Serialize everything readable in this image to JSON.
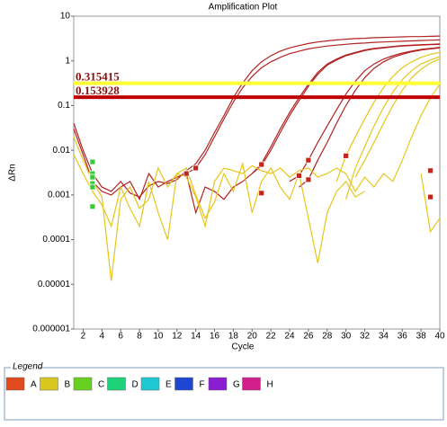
{
  "chart_data": {
    "type": "line",
    "title": "Amplification Plot",
    "x_label": "Cycle",
    "y_label": "ΔRn",
    "y_log": true,
    "grid": false,
    "xlim": [
      1,
      40
    ],
    "ylim": [
      1e-06,
      10
    ],
    "xticks": [
      2,
      4,
      6,
      8,
      10,
      12,
      14,
      16,
      18,
      20,
      22,
      24,
      26,
      28,
      30,
      32,
      34,
      36,
      38,
      40
    ],
    "yticks": [
      10,
      1,
      0.1,
      0.01,
      0.001,
      0.0001,
      1e-05,
      1e-06
    ],
    "x": [
      1,
      2,
      3,
      4,
      5,
      6,
      7,
      8,
      9,
      10,
      11,
      12,
      13,
      14,
      15,
      16,
      17,
      18,
      19,
      20,
      21,
      22,
      23,
      24,
      25,
      26,
      27,
      28,
      29,
      30,
      31,
      32,
      33,
      34,
      35,
      36,
      37,
      38,
      39,
      40
    ],
    "thresholds": [
      {
        "value": 0.315415,
        "color": "#ffff33"
      },
      {
        "value": 0.153928,
        "color": "#c00000"
      }
    ],
    "series": [
      {
        "color": "#b22222",
        "values": [
          0.03,
          0.008,
          0.002,
          0.0012,
          0.001,
          0.0015,
          0.002,
          0.0008,
          0.003,
          0.0015,
          0.002,
          0.0025,
          0.003,
          0.004,
          0.008,
          0.02,
          0.05,
          0.12,
          0.25,
          0.45,
          0.7,
          0.95,
          1.2,
          1.45,
          1.65,
          1.85,
          2.0,
          2.15,
          2.25,
          2.35,
          2.45,
          2.5,
          2.6,
          2.65,
          2.7,
          2.75,
          2.8,
          2.85,
          2.9,
          2.95
        ]
      },
      {
        "color": "#b22222",
        "values": [
          0.04,
          0.01,
          0.003,
          0.0015,
          0.0012,
          0.002,
          0.0011,
          0.0009,
          0.0016,
          0.002,
          0.0018,
          0.0022,
          0.0035,
          0.005,
          0.01,
          0.025,
          0.06,
          0.15,
          0.32,
          0.6,
          0.95,
          1.3,
          1.65,
          1.95,
          2.2,
          2.45,
          2.65,
          2.8,
          2.95,
          3.05,
          3.15,
          3.2,
          3.3,
          3.35,
          3.4,
          3.45,
          3.5,
          3.5,
          3.55,
          3.6
        ]
      },
      {
        "color": "#b22222",
        "values": [
          null,
          null,
          null,
          null,
          null,
          null,
          null,
          null,
          null,
          null,
          null,
          null,
          0.003,
          0.0004,
          0.0015,
          0.0012,
          0.0008,
          0.0015,
          0.002,
          0.003,
          0.005,
          0.012,
          0.03,
          0.07,
          0.15,
          0.3,
          0.55,
          0.85,
          1.1,
          1.35,
          1.55,
          1.75,
          1.9,
          2.0,
          2.1,
          2.2,
          2.25,
          2.3,
          2.35,
          2.4
        ]
      },
      {
        "color": "#b22222",
        "values": [
          null,
          null,
          null,
          null,
          null,
          null,
          null,
          null,
          null,
          null,
          null,
          null,
          null,
          null,
          null,
          null,
          null,
          null,
          null,
          0.003,
          0.0045,
          0.01,
          0.025,
          0.06,
          0.13,
          0.27,
          0.5,
          0.8,
          1.05,
          1.3,
          1.5,
          1.7,
          1.85,
          1.95,
          2.05,
          2.15,
          2.2,
          2.25,
          2.3,
          2.35
        ]
      },
      {
        "color": "#b22222",
        "values": [
          null,
          null,
          null,
          null,
          null,
          null,
          null,
          null,
          null,
          null,
          null,
          null,
          null,
          null,
          null,
          null,
          null,
          null,
          null,
          null,
          null,
          null,
          null,
          0.002,
          0.0027,
          0.006,
          0.015,
          0.035,
          0.08,
          0.18,
          0.35,
          0.6,
          0.85,
          1.1,
          1.3,
          1.5,
          1.65,
          1.8,
          1.9,
          2.0
        ]
      },
      {
        "color": "#b22222",
        "values": [
          null,
          null,
          null,
          null,
          null,
          null,
          null,
          null,
          null,
          null,
          null,
          null,
          null,
          null,
          null,
          null,
          null,
          null,
          null,
          null,
          null,
          null,
          null,
          null,
          0.0015,
          0.0022,
          0.006,
          0.015,
          0.04,
          0.1,
          0.22,
          0.42,
          0.68,
          0.95,
          1.2,
          1.4,
          1.6,
          1.75,
          1.85,
          1.95
        ]
      },
      {
        "color": "#e6c619",
        "values": [
          null,
          null,
          null,
          null,
          null,
          null,
          null,
          null,
          null,
          null,
          null,
          null,
          null,
          null,
          null,
          null,
          null,
          null,
          null,
          null,
          null,
          null,
          null,
          null,
          null,
          null,
          null,
          null,
          0.002,
          0.0075,
          0.02,
          0.05,
          0.12,
          0.25,
          0.45,
          0.7,
          0.95,
          1.2,
          1.4,
          1.55
        ]
      },
      {
        "color": "#e6c619",
        "values": [
          null,
          null,
          null,
          null,
          null,
          null,
          null,
          null,
          null,
          null,
          null,
          null,
          null,
          null,
          null,
          null,
          null,
          null,
          null,
          null,
          null,
          null,
          null,
          null,
          null,
          null,
          null,
          null,
          null,
          0.0008,
          0.004,
          0.012,
          0.035,
          0.09,
          0.2,
          0.38,
          0.6,
          0.85,
          1.05,
          1.25
        ]
      },
      {
        "color": "#e6c619",
        "values": [
          0.008,
          0.003,
          0.0012,
          0.0006,
          0.0002,
          0.0015,
          0.0005,
          0.0002,
          0.002,
          0.0004,
          0.0001,
          0.003,
          0.004,
          0.001,
          0.0003,
          0.0007,
          0.003,
          0.0012,
          0.005,
          0.0004,
          0.002,
          0.004,
          0.0015,
          0.0008,
          0.003,
          0.0003,
          3e-05,
          0.0004,
          0.0012,
          0.002,
          0.0009,
          0.0012,
          null,
          null,
          0.002,
          0.006,
          0.02,
          0.06,
          0.15,
          0.3
        ]
      },
      {
        "color": "#e6c619",
        "values": [
          0.02,
          0.006,
          0.002,
          0.0009,
          1.2e-05,
          0.0008,
          0.0015,
          0.0005,
          0.0008,
          0.004,
          0.0015,
          0.003,
          0.0025,
          0.0009,
          0.0002,
          0.002,
          0.004,
          0.0035,
          0.003,
          0.0045,
          0.0035,
          0.003,
          0.004,
          0.0025,
          0.0035,
          0.004,
          0.0025,
          0.003,
          0.004,
          0.003,
          0.0012,
          0.0025,
          0.0015,
          0.003,
          0.002,
          null,
          null,
          0.003,
          0.00015,
          0.0003
        ]
      },
      {
        "color": "#e6c619",
        "values": [
          null,
          null,
          null,
          null,
          null,
          null,
          null,
          null,
          null,
          null,
          null,
          null,
          null,
          null,
          null,
          null,
          null,
          null,
          null,
          null,
          null,
          null,
          null,
          null,
          null,
          null,
          null,
          null,
          null,
          null,
          0.0025,
          0.006,
          0.015,
          0.04,
          0.1,
          0.22,
          0.42,
          0.65,
          0.9,
          1.1
        ]
      }
    ],
    "markers": [
      {
        "x": 13,
        "y": 0.003,
        "color": "#c0281e"
      },
      {
        "x": 14,
        "y": 0.004,
        "color": "#c0281e"
      },
      {
        "x": 21,
        "y": 0.0048,
        "color": "#c0281e"
      },
      {
        "x": 21,
        "y": 0.0011,
        "color": "#c0281e"
      },
      {
        "x": 25,
        "y": 0.0027,
        "color": "#c0281e"
      },
      {
        "x": 26,
        "y": 0.0022,
        "color": "#c0281e"
      },
      {
        "x": 26,
        "y": 0.006,
        "color": "#c0281e"
      },
      {
        "x": 30,
        "y": 0.0075,
        "color": "#c0281e"
      },
      {
        "x": 39,
        "y": 0.0035,
        "color": "#c0281e"
      },
      {
        "x": 39,
        "y": 0.0009,
        "color": "#c0281e"
      },
      {
        "x": 3,
        "y": 0.0055,
        "color": "#3cc83c"
      },
      {
        "x": 3,
        "y": 0.003,
        "color": "#3cc83c"
      },
      {
        "x": 3,
        "y": 0.0025,
        "color": "#3cc83c"
      },
      {
        "x": 3,
        "y": 0.0018,
        "color": "#3cc83c"
      },
      {
        "x": 3,
        "y": 0.0015,
        "color": "#3cc83c"
      },
      {
        "x": 3,
        "y": 0.00055,
        "color": "#3cc83c"
      }
    ],
    "legend": {
      "title": "Legend",
      "items": [
        {
          "label": "A",
          "color": "#e04a1e"
        },
        {
          "label": "B",
          "color": "#d8c81e"
        },
        {
          "label": "C",
          "color": "#66d11e"
        },
        {
          "label": "D",
          "color": "#1ed27a"
        },
        {
          "label": "E",
          "color": "#1ec8d2"
        },
        {
          "label": "F",
          "color": "#1e46d2"
        },
        {
          "label": "G",
          "color": "#8c1ed2"
        },
        {
          "label": "H",
          "color": "#d21e8c"
        }
      ]
    }
  }
}
